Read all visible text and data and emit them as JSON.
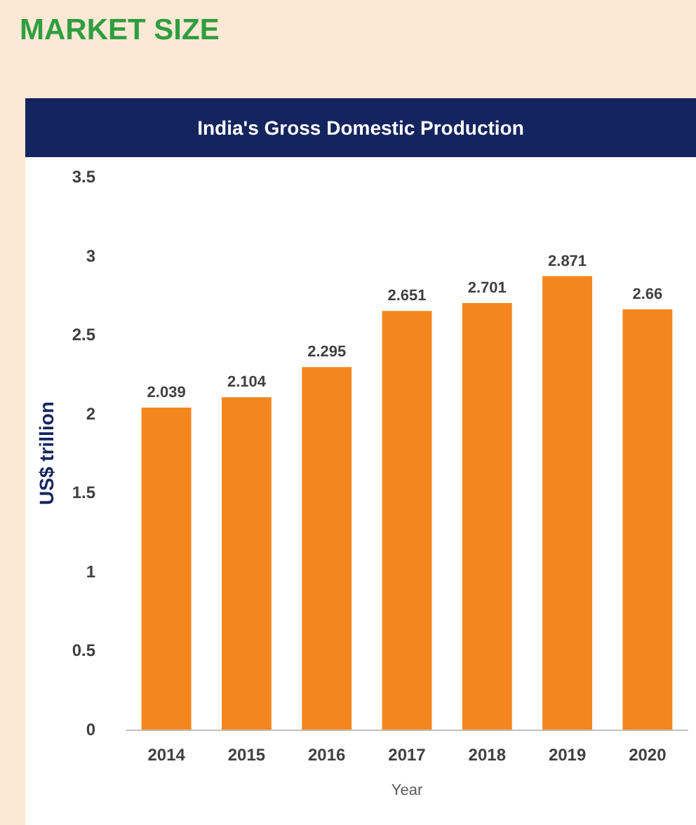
{
  "chart_data": {
    "type": "bar",
    "title": "India's Gross Domestic Production",
    "annotations": [
      "MARKET SIZE"
    ],
    "xlabel": "Year",
    "ylabel": "US$ trillion",
    "categories": [
      "2014",
      "2015",
      "2016",
      "2017",
      "2018",
      "2019",
      "2020"
    ],
    "values": [
      2.039,
      2.104,
      2.295,
      2.651,
      2.701,
      2.871,
      2.66
    ],
    "color": "#f5861f",
    "ylim": [
      0,
      3.5
    ],
    "yticks": [
      0,
      0.5,
      1,
      1.5,
      2,
      2.5,
      3,
      3.5
    ],
    "data_labels": true
  }
}
